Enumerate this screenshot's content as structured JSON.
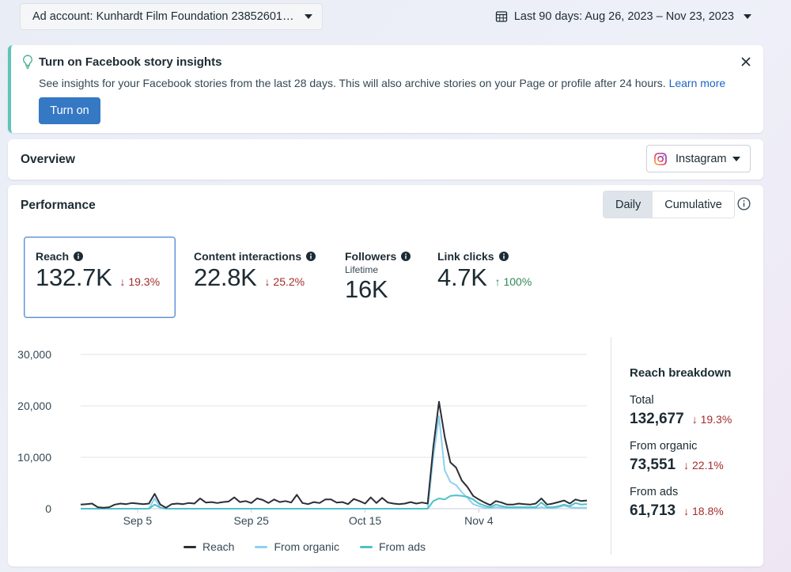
{
  "topbar": {
    "ad_account": "Ad account: Kunhardt Film Foundation 23852601…",
    "date_range": "Last 90 days: Aug 26, 2023 – Nov 23, 2023"
  },
  "banner": {
    "title": "Turn on Facebook story insights",
    "description": "See insights for your Facebook stories from the last 28 days. This will also archive stories on your Page or profile after 24 hours.",
    "learn_more": "Learn more",
    "button": "Turn on"
  },
  "overview": {
    "title": "Overview",
    "platform": "Instagram"
  },
  "performance": {
    "title": "Performance",
    "toggle": [
      "Daily",
      "Cumulative"
    ],
    "active_toggle": "Daily",
    "metrics": [
      {
        "name": "Reach",
        "value": "132.7K",
        "change": "19.3%",
        "direction": "down",
        "selected": true
      },
      {
        "name": "Content interactions",
        "value": "22.8K",
        "change": "25.2%",
        "direction": "down",
        "selected": false
      },
      {
        "name": "Followers",
        "subtitle": "Lifetime",
        "value": "16K",
        "selected": false
      },
      {
        "name": "Link clicks",
        "value": "4.7K",
        "change": "100%",
        "direction": "up",
        "selected": false
      }
    ]
  },
  "chart_data": {
    "type": "line",
    "y_tick_labels": [
      "30,000",
      "20,000",
      "10,000",
      "0"
    ],
    "ylim": [
      0,
      30000
    ],
    "x_tick_labels": [
      "Sep 5",
      "Sep 25",
      "Oct 15",
      "Nov 4"
    ],
    "x_ticks_day_index": [
      10,
      30,
      50,
      70
    ],
    "series": [
      {
        "name": "Reach",
        "color": "#2b2f33",
        "values": [
          800,
          900,
          1000,
          300,
          200,
          300,
          800,
          1000,
          900,
          1100,
          1000,
          900,
          1000,
          2900,
          800,
          200,
          900,
          1000,
          900,
          1100,
          1000,
          2000,
          1200,
          1300,
          1100,
          1300,
          1400,
          2200,
          1300,
          1500,
          1100,
          2000,
          1700,
          1100,
          1800,
          1300,
          1500,
          1200,
          2700,
          1100,
          900,
          1300,
          1100,
          1800,
          1800,
          1200,
          1300,
          900,
          1900,
          1500,
          1000,
          2200,
          1100,
          2100,
          1200,
          1000,
          900,
          1000,
          1300,
          1000,
          1200,
          1000,
          12000,
          20800,
          14000,
          9000,
          8000,
          5500,
          4200,
          2500,
          1800,
          1200,
          700,
          1500,
          1200,
          800,
          800,
          1000,
          900,
          800,
          1000,
          2000,
          800,
          1000,
          1300,
          1600,
          1000,
          1800,
          1500,
          1600
        ]
      },
      {
        "name": "From organic",
        "color": "#8fd0f2",
        "values": [
          0,
          0,
          0,
          0,
          0,
          0,
          0,
          0,
          0,
          0,
          0,
          0,
          0,
          2000,
          200,
          0,
          0,
          0,
          0,
          0,
          0,
          0,
          0,
          0,
          0,
          0,
          0,
          0,
          0,
          0,
          0,
          0,
          0,
          0,
          0,
          0,
          0,
          0,
          0,
          0,
          0,
          0,
          0,
          0,
          0,
          0,
          0,
          0,
          0,
          0,
          0,
          0,
          0,
          0,
          0,
          0,
          0,
          0,
          0,
          0,
          0,
          0,
          10000,
          18000,
          7500,
          5200,
          4600,
          3200,
          2100,
          900,
          500,
          200,
          100,
          300,
          200,
          100,
          100,
          100,
          100,
          100,
          100,
          300,
          100,
          100,
          300,
          600,
          300,
          200,
          200,
          200
        ]
      },
      {
        "name": "From ads",
        "color": "#4fc0c9",
        "values": [
          0,
          0,
          0,
          0,
          0,
          0,
          0,
          0,
          0,
          0,
          0,
          0,
          0,
          800,
          200,
          0,
          0,
          0,
          0,
          0,
          0,
          0,
          0,
          0,
          0,
          0,
          0,
          0,
          0,
          0,
          0,
          0,
          0,
          0,
          0,
          0,
          0,
          0,
          0,
          0,
          0,
          0,
          0,
          0,
          0,
          0,
          0,
          0,
          0,
          0,
          0,
          0,
          0,
          0,
          0,
          0,
          0,
          0,
          0,
          0,
          0,
          0,
          1500,
          2000,
          1800,
          2500,
          2600,
          2500,
          2300,
          1800,
          1000,
          600,
          300,
          800,
          500,
          300,
          300,
          300,
          300,
          300,
          300,
          1200,
          300,
          300,
          500,
          800,
          500,
          1100,
          800,
          900
        ]
      }
    ]
  },
  "breakdown": {
    "title": "Reach breakdown",
    "items": [
      {
        "label": "Total",
        "value": "132,677",
        "change": "19.3%"
      },
      {
        "label": "From organic",
        "value": "73,551",
        "change": "22.1%"
      },
      {
        "label": "From ads",
        "value": "61,713",
        "change": "18.8%"
      }
    ]
  },
  "colors": {
    "accent_blue": "#3578c4",
    "banner_stripe": "#5ec4b6",
    "down": "#a32d2b",
    "up": "#2f8a5a"
  }
}
